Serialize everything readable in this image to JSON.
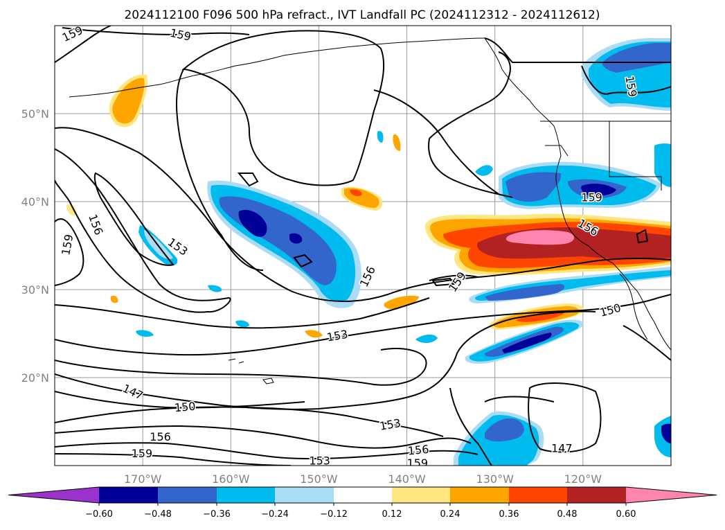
{
  "title": "2024112100 F096 500 hPa refract., IVT Landfall PC (2024112312 - 2024112612)",
  "map": {
    "lat_ticks": [
      {
        "label": "20°N",
        "value": 20
      },
      {
        "label": "30°N",
        "value": 30
      },
      {
        "label": "40°N",
        "value": 40
      },
      {
        "label": "50°N",
        "value": 50
      }
    ],
    "lon_ticks": [
      {
        "label": "170°W",
        "value": -170
      },
      {
        "label": "160°W",
        "value": -160
      },
      {
        "label": "150°W",
        "value": -150
      },
      {
        "label": "140°W",
        "value": -140
      },
      {
        "label": "130°W",
        "value": -130
      },
      {
        "label": "120°W",
        "value": -120
      }
    ],
    "lon_range": [
      -180,
      -110
    ],
    "lat_range": [
      10,
      60
    ],
    "gridlines": true,
    "contour_labels": [
      {
        "text": "159",
        "lon": -178.0,
        "lat": 59.1,
        "rot": -25
      },
      {
        "text": "159",
        "lon": -165.7,
        "lat": 59.0,
        "rot": 12
      },
      {
        "text": "159",
        "lon": -114.5,
        "lat": 53.1,
        "rot": 80
      },
      {
        "text": "156",
        "lon": -175.3,
        "lat": 37.4,
        "rot": 70
      },
      {
        "text": "159",
        "lon": -178.6,
        "lat": 35.1,
        "rot": -80
      },
      {
        "text": "153",
        "lon": -166.0,
        "lat": 34.9,
        "rot": 35
      },
      {
        "text": "156",
        "lon": -144.5,
        "lat": 31.5,
        "rot": -65
      },
      {
        "text": "159",
        "lon": -134.3,
        "lat": 30.9,
        "rot": -55
      },
      {
        "text": "159",
        "lon": -119.0,
        "lat": 40.5,
        "rot": 0
      },
      {
        "text": "156",
        "lon": -119.4,
        "lat": 37.1,
        "rot": 30
      },
      {
        "text": "153",
        "lon": -147.9,
        "lat": 24.8,
        "rot": -10
      },
      {
        "text": "150",
        "lon": -116.9,
        "lat": 27.7,
        "rot": -15
      },
      {
        "text": "147",
        "lon": -171.1,
        "lat": 18.4,
        "rot": 25
      },
      {
        "text": "150",
        "lon": -165.2,
        "lat": 16.7,
        "rot": -5
      },
      {
        "text": "156",
        "lon": -168.0,
        "lat": 13.3,
        "rot": 0
      },
      {
        "text": "159",
        "lon": -170.1,
        "lat": 11.4,
        "rot": 0
      },
      {
        "text": "153",
        "lon": -141.9,
        "lat": 14.7,
        "rot": -10
      },
      {
        "text": "153",
        "lon": -149.9,
        "lat": 10.6,
        "rot": 0
      },
      {
        "text": "156",
        "lon": -138.7,
        "lat": 11.8,
        "rot": -5
      },
      {
        "text": "159",
        "lon": -138.8,
        "lat": 10.3,
        "rot": 0
      },
      {
        "text": "147",
        "lon": -122.4,
        "lat": 12.0,
        "rot": 0
      }
    ]
  },
  "colorbar": {
    "tick_labels": [
      "−0.60",
      "−0.48",
      "−0.36",
      "−0.24",
      "−0.12",
      "0.12",
      "0.24",
      "0.36",
      "0.48",
      "0.60"
    ],
    "colors": [
      "#9933cc",
      "#000099",
      "#3366cc",
      "#00bbee",
      "#aaddf5",
      "#ffffff",
      "#ffe680",
      "#ffa500",
      "#ff4500",
      "#b22222",
      "#ff85b0"
    ],
    "extend": "both"
  }
}
